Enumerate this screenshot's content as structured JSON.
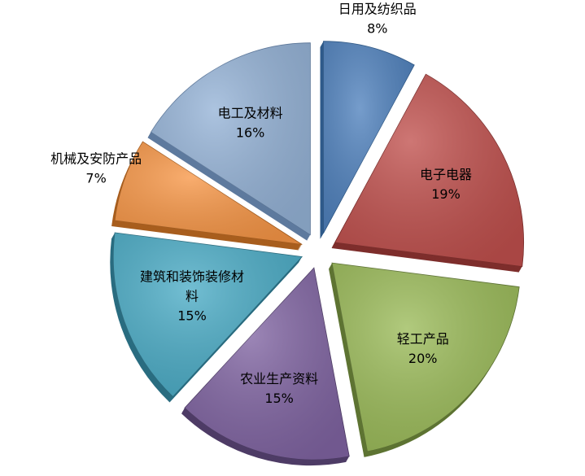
{
  "chart_data": {
    "type": "pie",
    "style": "exploded-3d",
    "title": "",
    "legend": "none",
    "slices": [
      {
        "label": "日用及纺织品",
        "label_lines": [
          "日用及纺织品"
        ],
        "value": 8,
        "display": "8%",
        "color": "#4F81BD",
        "side_color": "#2F5A8A"
      },
      {
        "label": "电子电器",
        "label_lines": [
          "电子电器"
        ],
        "value": 19,
        "display": "19%",
        "color": "#C0504D",
        "side_color": "#7E2E2C"
      },
      {
        "label": "轻工产品",
        "label_lines": [
          "轻工产品"
        ],
        "value": 20,
        "display": "20%",
        "color": "#9BBB59",
        "side_color": "#5E7433"
      },
      {
        "label": "农业生产资料",
        "label_lines": [
          "农业生产资料"
        ],
        "value": 15,
        "display": "15%",
        "color": "#8064A2",
        "side_color": "#4E3C66"
      },
      {
        "label": "建筑和装饰装修材料",
        "label_lines": [
          "建筑和装饰装修材",
          "料"
        ],
        "value": 15,
        "display": "15%",
        "color": "#4BACC6",
        "side_color": "#2A6D80"
      },
      {
        "label": "机械及安防产品",
        "label_lines": [
          "机械及安防产品"
        ],
        "value": 7,
        "display": "7%",
        "color": "#F79646",
        "side_color": "#A85E1E"
      },
      {
        "label": "电工及材料",
        "label_lines": [
          "电工及材料"
        ],
        "value": 16,
        "display": "16%",
        "color": "#95B3D7",
        "side_color": "#5E7A9E"
      }
    ]
  }
}
